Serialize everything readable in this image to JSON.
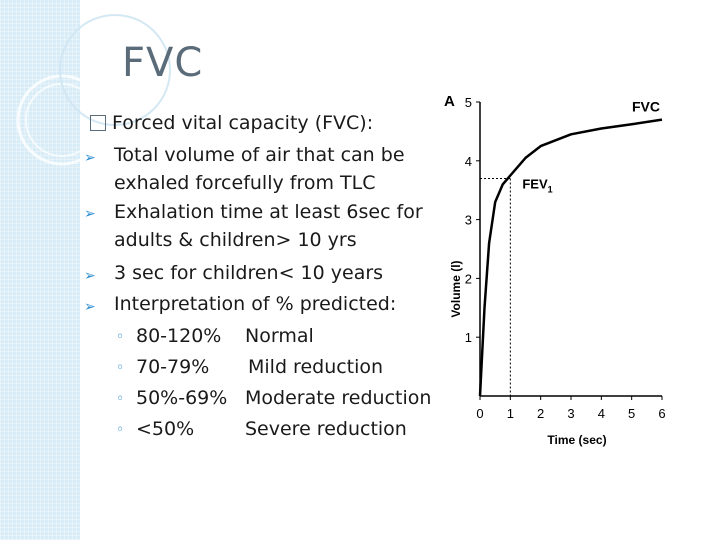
{
  "slide": {
    "title": "FVC",
    "header_item": "Forced vital capacity (FVC):",
    "bullets": [
      {
        "lines": [
          "Total volume of air that can be",
          "exhaled forcefully from TLC"
        ]
      },
      {
        "lines": [
          "Exhalation time at least 6sec for",
          "adults & children> 10 yrs"
        ]
      },
      {
        "lines": [
          "3 sec for children< 10 years"
        ]
      },
      {
        "lines": [
          "Interpretation of % predicted:"
        ]
      }
    ],
    "subbullets": [
      {
        "range": "80-120%",
        "meaning": "Normal"
      },
      {
        "range": "70-79%",
        "meaning": "Mild reduction"
      },
      {
        "range": "50%-69%",
        "meaning": "Moderate reduction"
      },
      {
        "range": "<50%",
        "meaning": "Severe reduction"
      }
    ]
  },
  "chart_data": {
    "type": "line",
    "panel_label": "A",
    "xlabel": "Time (sec)",
    "ylabel": "Volume (l)",
    "xlim": [
      0,
      6
    ],
    "ylim": [
      0,
      5
    ],
    "xticks": [
      0,
      1,
      2,
      3,
      4,
      5,
      6
    ],
    "yticks": [
      1,
      2,
      3,
      4,
      5
    ],
    "annotations": [
      {
        "text": "FVC",
        "x": 6,
        "y": 4.6
      },
      {
        "text": "FEV1",
        "x": 1,
        "y": 3.7
      }
    ],
    "fev1_marker": {
      "x": 1,
      "y": 3.7
    },
    "series": [
      {
        "x": [
          0,
          0.15,
          0.3,
          0.5,
          0.75,
          1.0,
          1.5,
          2.0,
          3.0,
          4.0,
          5.0,
          6.0
        ],
        "values": [
          0,
          1.5,
          2.6,
          3.3,
          3.6,
          3.75,
          4.05,
          4.25,
          4.45,
          4.55,
          4.62,
          4.7
        ]
      }
    ]
  }
}
